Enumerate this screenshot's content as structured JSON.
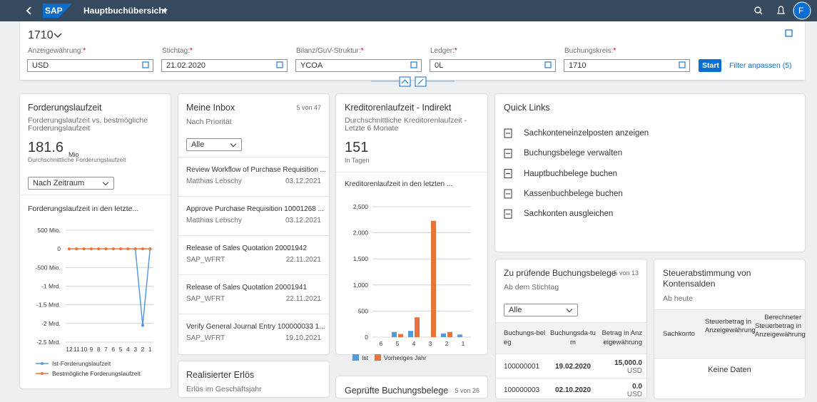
{
  "shell": {
    "title": "Hauptbuchübersicht",
    "avatar": "F"
  },
  "header": {
    "title": "1710",
    "required_mark": "*",
    "filters": [
      {
        "label": "Anzeigewährung:",
        "value": "USD"
      },
      {
        "label": "Stichtag:",
        "value": "21.02.2020"
      },
      {
        "label": "Bilanz/GuV-Struktur:",
        "value": "YCOA"
      },
      {
        "label": "Ledger:",
        "value": "0L"
      },
      {
        "label": "Buchungskreis:",
        "value": "1710"
      }
    ],
    "start": "Start",
    "adapt": "Filter anpassen (5)"
  },
  "cards": {
    "receivables": {
      "title": "Forderungslaufzeit",
      "subtitle": "Forderungslaufzeit vs. bestmögliche Forderungslaufzeit",
      "kpi": 181.6,
      "unit": "Mio",
      "kpi_label": "Durchschnittliche Forderungslaufzeit",
      "select": "Nach Zeitraum"
    },
    "inbox": {
      "title": "Meine Inbox",
      "count": "5 von 47",
      "subtitle": "Nach Priorität",
      "select": "Alle",
      "items": [
        {
          "title": "Review Workflow of Purchase Requisition ...",
          "sender": "Matthias Lebschy",
          "date": "03.12.2021"
        },
        {
          "title": "Approve Purchase Requisition 10001268 ...",
          "sender": "Matthias Lebschy",
          "date": "03.12.2021"
        },
        {
          "title": "Release of Sales Quotation 20001942",
          "sender": "SAP_WFRT",
          "date": "22.11.2021"
        },
        {
          "title": "Release of Sales Quotation 20001941",
          "sender": "SAP_WFRT",
          "date": "22.11.2021"
        },
        {
          "title": "Verify General Journal Entry 100000033 1...",
          "sender": "SAP_WFRT",
          "date": "19.10.2021"
        }
      ]
    },
    "payables": {
      "title": "Kreditorenlaufzeit - Indirekt",
      "subtitle": "Durchschnittliche Kreditorenlaufzeit - Letzte 6 Monate",
      "kpi": 151,
      "kpi_label": "In Tagen"
    },
    "quick_links": {
      "title": "Quick Links",
      "links": [
        "Sachkonteneinzelposten anzeigen",
        "Buchungsbelege verwalten",
        "Hauptbuchbelege buchen",
        "Kassenbuchbelege buchen",
        "Sachkonten ausgleichen"
      ]
    },
    "revenue": {
      "title": "Realisierter Erlös",
      "subtitle": "Erlös im Geschäftsjahr"
    },
    "checked": {
      "title": "Geprüfte Buchungsbelege",
      "count": "5 von 26"
    },
    "to_check": {
      "title": "Zu prüfende Buchungsbelege",
      "count": "5 von 13",
      "subtitle": "Ab dem Stichtag",
      "select": "Alle",
      "columns": [
        "Buchungs-beleg",
        "Buchungsda-tum",
        "Betrag in Anzeigewährung"
      ],
      "rows": [
        [
          "100000001",
          "19.02.2020",
          "15,000.0",
          "USD"
        ],
        [
          "100000003",
          "02.10.2020",
          "0.0",
          "USD"
        ]
      ]
    },
    "tax": {
      "title": "Steuerabstimmung von Kontensalden",
      "subtitle": "Ab heute",
      "columns": [
        "Sachkonto",
        "Steuerbetrag in Anzeigewährung",
        "Berechneter Steuerbetrag in Anzeigewährung"
      ],
      "empty": "Keine Daten"
    }
  },
  "chart_data": [
    {
      "type": "line",
      "title": "Forderungslaufzeit in den letzte...",
      "categories": [
        "12",
        "11",
        "10",
        "9",
        "8",
        "7",
        "6",
        "5",
        "4",
        "3",
        "2",
        "1"
      ],
      "ylim": [
        -2500000000,
        500000000
      ],
      "yticks": [
        {
          "value": -2500000000,
          "label": "-2.5 Mrd."
        },
        {
          "value": -2000000000,
          "label": "-2 Mrd."
        },
        {
          "value": -1500000000,
          "label": "-1.5 Mrd."
        },
        {
          "value": -1000000000,
          "label": "-1 Mrd."
        },
        {
          "value": -500000000,
          "label": "-500 Mio."
        },
        0,
        {
          "value": 500000000,
          "label": "500 Mio."
        }
      ],
      "grid": true,
      "series": [
        {
          "name": "Ist-Forderungslaufzeit",
          "color": "#5899da",
          "values": [
            null,
            null,
            null,
            null,
            null,
            null,
            null,
            null,
            null,
            0,
            -2050000000,
            0
          ]
        },
        {
          "name": "Bestmögliche Forderungslaufzeit",
          "color": "#e8743b",
          "values": [
            0,
            0,
            0,
            0,
            0,
            0,
            0,
            0,
            0,
            0,
            0,
            0
          ]
        }
      ]
    },
    {
      "type": "bar",
      "title": "Kreditorenlaufzeit in den letzten ...",
      "categories": [
        "6",
        "5",
        "4",
        "3",
        "2",
        "1"
      ],
      "ylim": [
        0,
        2500
      ],
      "yticks": [
        0,
        500,
        {
          "value": 1000,
          "label": "1,000"
        },
        {
          "value": 1500,
          "label": "1,500"
        },
        {
          "value": 2000,
          "label": "2,000"
        },
        {
          "value": 2500,
          "label": "2,500"
        }
      ],
      "grid": true,
      "series": [
        {
          "name": "Ist",
          "color": "#5899da",
          "values": [
            0,
            100,
            120,
            0,
            70,
            50
          ]
        },
        {
          "name": "Vorheriges Jahr",
          "color": "#e8743b",
          "values": [
            0,
            60,
            380,
            2230,
            100,
            0
          ]
        }
      ]
    }
  ]
}
